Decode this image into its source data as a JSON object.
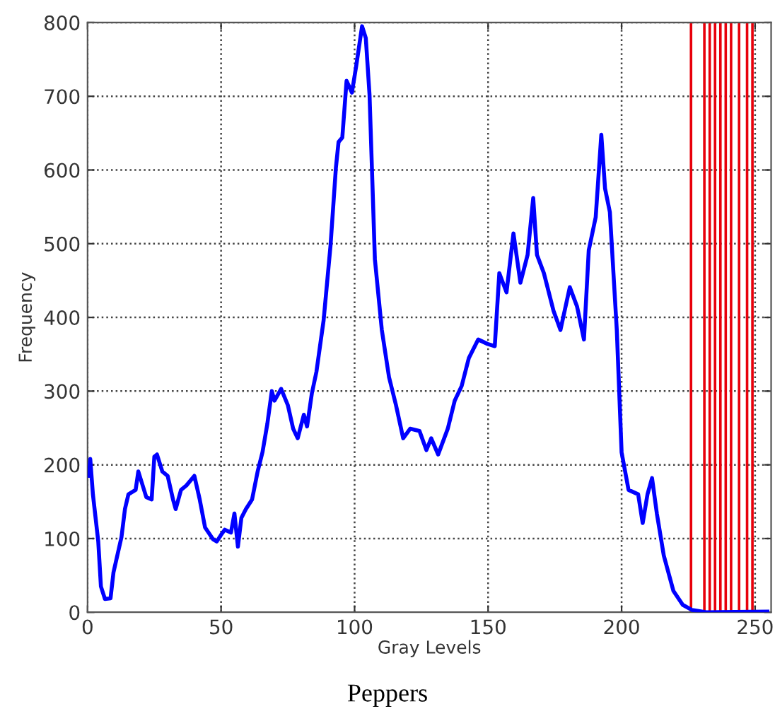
{
  "chart_data": {
    "type": "line",
    "xlabel": "Gray Levels",
    "ylabel": "Frequency",
    "annotations": [
      "Peppers"
    ],
    "x": [
      0.5,
      1,
      2,
      4,
      5,
      6.5,
      8.6,
      9.7,
      12.7,
      14,
      15.3,
      18,
      19,
      22,
      24,
      25,
      26,
      28,
      30,
      32,
      33,
      35,
      37,
      40,
      42,
      44,
      47,
      48.4,
      50,
      51.4,
      53.7,
      55,
      56.3,
      57.6,
      59.3,
      61.6,
      63.7,
      65.5,
      67.3,
      69,
      70,
      72.5,
      75,
      77,
      78.7,
      81,
      82.2,
      84,
      85.7,
      88.4,
      91,
      93,
      94,
      95.4,
      97,
      99,
      100.6,
      102.8,
      104.2,
      105.6,
      107.6,
      110.2,
      112.9,
      115.5,
      118.2,
      120.8,
      124.3,
      126.9,
      128.7,
      131.3,
      134.9,
      137.5,
      140.1,
      142.8,
      146.3,
      149.8,
      152.5,
      154.2,
      156.9,
      159.5,
      162.1,
      164.8,
      166.9,
      168.3,
      170.9,
      174.5,
      177.1,
      180.6,
      183.3,
      185.9,
      187.7,
      190.3,
      192.4,
      193.8,
      195.6,
      198.2,
      200,
      202.6,
      206.2,
      207.9,
      209.7,
      211.4,
      213.2,
      215.8,
      219.4,
      222.9,
      226.4,
      231.7,
      254.6
    ],
    "series": [
      {
        "color": "#0000ff",
        "values": [
          185,
          208,
          160,
          96,
          35,
          18,
          19,
          54,
          102,
          140,
          160,
          166,
          191,
          156,
          153,
          211,
          214,
          191,
          185,
          153,
          140,
          166,
          172,
          185,
          153,
          115,
          99,
          96,
          105,
          112,
          108,
          134,
          89,
          128,
          140,
          153,
          191,
          217,
          255,
          300,
          287,
          303,
          281,
          249,
          236,
          268,
          252,
          297,
          326,
          396,
          498,
          603,
          638,
          644,
          721,
          705,
          741,
          795,
          779,
          702,
          479,
          383,
          319,
          281,
          236,
          249,
          246,
          220,
          236,
          214,
          249,
          287,
          307,
          345,
          370,
          364,
          361,
          460,
          434,
          514,
          447,
          485,
          562,
          485,
          460,
          409,
          383,
          441,
          415,
          370,
          491,
          536,
          648,
          575,
          543,
          383,
          217,
          166,
          160,
          121,
          160,
          182,
          134,
          77,
          29,
          10,
          3,
          0,
          1
        ]
      }
    ],
    "ref_lines": [
      {
        "axis": "x",
        "value": 226,
        "color": "#e8000b"
      },
      {
        "axis": "x",
        "value": 231,
        "color": "#e8000b"
      },
      {
        "axis": "x",
        "value": 233,
        "color": "#e8000b"
      },
      {
        "axis": "x",
        "value": 235,
        "color": "#e8000b"
      },
      {
        "axis": "x",
        "value": 237,
        "color": "#e8000b"
      },
      {
        "axis": "x",
        "value": 239,
        "color": "#e8000b"
      },
      {
        "axis": "x",
        "value": 241,
        "color": "#e8000b"
      },
      {
        "axis": "x",
        "value": 244,
        "color": "#e8000b"
      },
      {
        "axis": "x",
        "value": 247,
        "color": "#e8000b"
      },
      {
        "axis": "x",
        "value": 249,
        "color": "#e8000b"
      }
    ],
    "xlim": [
      0,
      256
    ],
    "xticks": [
      0,
      50,
      100,
      150,
      200,
      250
    ],
    "ylim": [
      0,
      800
    ],
    "yticks": [
      0,
      100,
      200,
      300,
      400,
      500,
      600,
      700,
      800
    ],
    "grid": true,
    "line_style": "solid",
    "marker": "none"
  }
}
